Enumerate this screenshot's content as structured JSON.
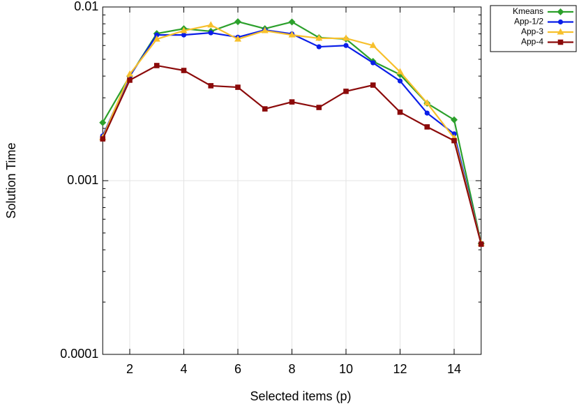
{
  "chart_data": {
    "type": "line",
    "x_label": "Selected items (p)",
    "y_label": "Solution Time",
    "x": [
      1,
      2,
      3,
      4,
      5,
      6,
      7,
      8,
      9,
      10,
      11,
      12,
      13,
      14,
      15
    ],
    "xlim": [
      1,
      15
    ],
    "xticks": [
      2,
      4,
      6,
      8,
      10,
      12,
      14
    ],
    "ylim": [
      0.0001,
      0.01
    ],
    "yticks": [
      0.0001,
      0.001,
      0.01
    ],
    "log_y": true,
    "grid": true,
    "legend": "outside-top-right",
    "series": [
      {
        "name": "Kmeans",
        "color": "#2ca02c",
        "marker": "diamond",
        "values": [
          0.00216,
          0.004,
          0.00703,
          0.0075,
          0.00724,
          0.00823,
          0.0075,
          0.0082,
          0.00666,
          0.00654,
          0.00486,
          0.00408,
          0.00279,
          0.00224,
          0.000435
        ]
      },
      {
        "name": "App-1/2",
        "color": "#0a1ee8",
        "marker": "circle",
        "values": [
          0.00181,
          0.004,
          0.0069,
          0.0069,
          0.0071,
          0.0067,
          0.00737,
          0.007,
          0.0059,
          0.006,
          0.00477,
          0.00375,
          0.00245,
          0.00186,
          0.000435
        ]
      },
      {
        "name": "App-3",
        "color": "#f7c02c",
        "marker": "triangle",
        "values": [
          0.00177,
          0.0041,
          0.00653,
          0.0073,
          0.00787,
          0.00653,
          0.0073,
          0.0069,
          0.0066,
          0.0066,
          0.006,
          0.00423,
          0.0028,
          0.00176,
          0.000435
        ]
      },
      {
        "name": "App-4",
        "color": "#8b0a0a",
        "marker": "square",
        "values": [
          0.00174,
          0.00379,
          0.0046,
          0.00431,
          0.00352,
          0.00345,
          0.00259,
          0.00284,
          0.00264,
          0.00327,
          0.00355,
          0.00248,
          0.00204,
          0.0017,
          0.000431
        ]
      }
    ]
  }
}
